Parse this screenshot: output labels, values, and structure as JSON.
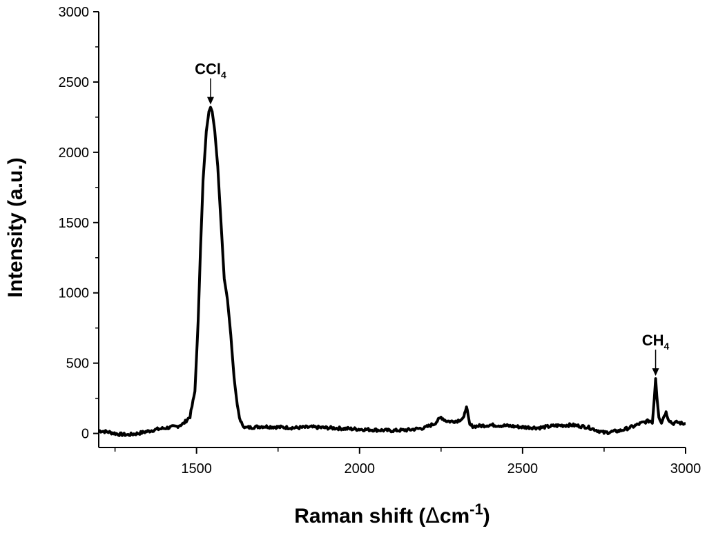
{
  "chart_data": {
    "type": "line",
    "title": "",
    "xlabel": "Raman shift (",
    "xlabel_delta": "Δ",
    "xlabel_unit": "cm",
    "xlabel_sup": "-1",
    "xlabel_close": ")",
    "ylabel": "Intensity (a.u.)",
    "xlim": [
      1200,
      3000
    ],
    "ylim": [
      -100,
      3000
    ],
    "xticks": [
      1500,
      2000,
      2500,
      3000
    ],
    "yticks": [
      0,
      500,
      1000,
      1500,
      2000,
      2500,
      3000
    ],
    "grid": false,
    "legend": "none",
    "line_color": "#000000",
    "series": [
      {
        "x": [
          1200,
          1230,
          1260,
          1290,
          1320,
          1350,
          1380,
          1410,
          1440,
          1460,
          1480,
          1495,
          1505,
          1512,
          1520,
          1530,
          1538,
          1543,
          1548,
          1556,
          1565,
          1575,
          1585,
          1595,
          1605,
          1615,
          1625,
          1635,
          1650,
          1700,
          1750,
          1800,
          1850,
          1900,
          1950,
          2000,
          2050,
          2100,
          2150,
          2200,
          2230,
          2250,
          2265,
          2280,
          2300,
          2320,
          2328,
          2333,
          2338,
          2350,
          2400,
          2450,
          2500,
          2550,
          2600,
          2650,
          2700,
          2750,
          2800,
          2840,
          2860,
          2880,
          2890,
          2898,
          2904,
          2908,
          2912,
          2918,
          2926,
          2935,
          2940,
          2948,
          2960,
          2975,
          2990,
          3000
        ],
        "y": [
          20,
          10,
          -5,
          -10,
          0,
          15,
          30,
          40,
          50,
          70,
          120,
          300,
          800,
          1300,
          1800,
          2150,
          2290,
          2320,
          2290,
          2150,
          1900,
          1500,
          1100,
          950,
          700,
          400,
          200,
          80,
          40,
          50,
          45,
          40,
          45,
          40,
          35,
          30,
          25,
          20,
          25,
          40,
          70,
          115,
          90,
          85,
          90,
          110,
          200,
          120,
          60,
          50,
          60,
          55,
          45,
          40,
          55,
          60,
          45,
          5,
          20,
          50,
          70,
          85,
          90,
          80,
          250,
          390,
          260,
          120,
          80,
          130,
          150,
          100,
          70,
          80,
          70,
          70
        ]
      }
    ],
    "annotations": [
      {
        "label": "CCl",
        "sub": "4",
        "x": 1543,
        "y": 2320
      },
      {
        "label": "CH",
        "sub": "4",
        "x": 2908,
        "y": 390
      }
    ]
  }
}
